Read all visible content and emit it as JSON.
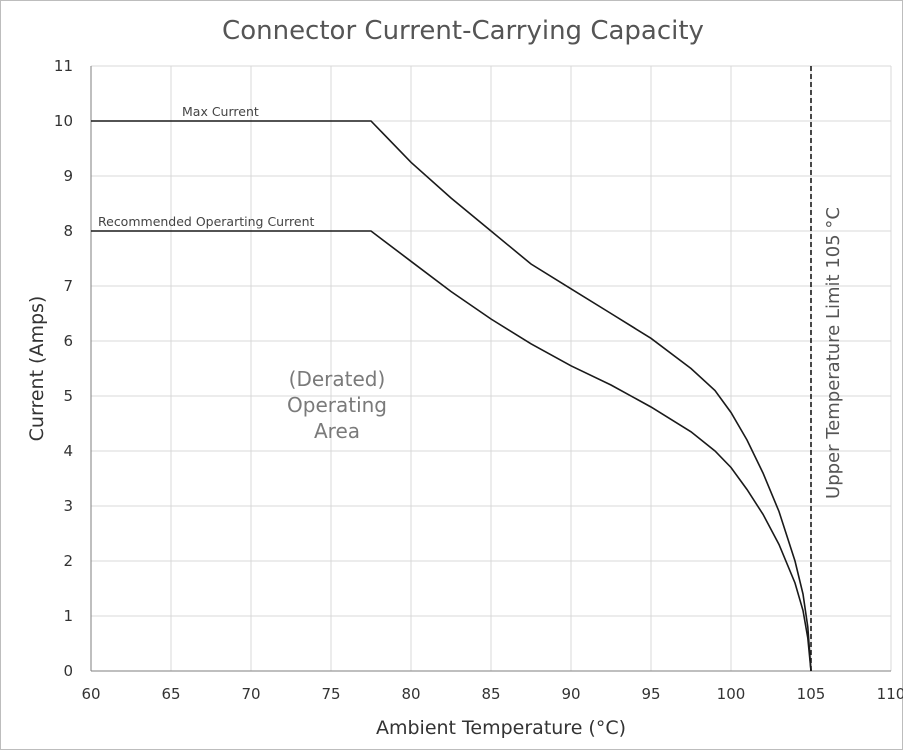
{
  "chart_data": {
    "type": "line",
    "title": "Connector Current-Carrying Capacity",
    "xlabel": "Ambient Temperature (°C)",
    "ylabel": "Current (Amps)",
    "xlim": [
      60,
      110
    ],
    "ylim": [
      0,
      11
    ],
    "x_ticks": [
      "60",
      "65",
      "70",
      "75",
      "80",
      "85",
      "90",
      "95",
      "100",
      "105",
      "110"
    ],
    "y_ticks": [
      "0",
      "1",
      "2",
      "3",
      "4",
      "5",
      "6",
      "7",
      "8",
      "9",
      "10",
      "11"
    ],
    "grid": "vertical-and-horizontal",
    "legend": "none",
    "series": [
      {
        "name": "Max Current",
        "x": [
          60,
          77.5,
          80,
          82.5,
          85,
          87.5,
          90,
          92.5,
          95,
          97.5,
          99,
          100,
          101,
          102,
          103,
          104,
          104.5,
          104.8,
          105
        ],
        "y": [
          10,
          10,
          9.25,
          8.6,
          8.0,
          7.4,
          6.95,
          6.5,
          6.05,
          5.5,
          5.1,
          4.7,
          4.2,
          3.6,
          2.9,
          2.0,
          1.4,
          0.8,
          0
        ]
      },
      {
        "name": "Recommended Operarting Current",
        "x": [
          60,
          77.5,
          80,
          82.5,
          85,
          87.5,
          90,
          92.5,
          95,
          97.5,
          99,
          100,
          101,
          102,
          103,
          104,
          104.5,
          104.8,
          105
        ],
        "y": [
          8,
          8,
          7.45,
          6.9,
          6.4,
          5.95,
          5.55,
          5.2,
          4.8,
          4.35,
          4.0,
          3.7,
          3.3,
          2.85,
          2.3,
          1.6,
          1.1,
          0.6,
          0
        ]
      }
    ],
    "annotations": {
      "area_label": [
        "(Derated)",
        "Operating",
        "Area"
      ],
      "upper_limit": {
        "x": 105,
        "label": "Upper Temperature Limit 105 °C"
      }
    }
  }
}
